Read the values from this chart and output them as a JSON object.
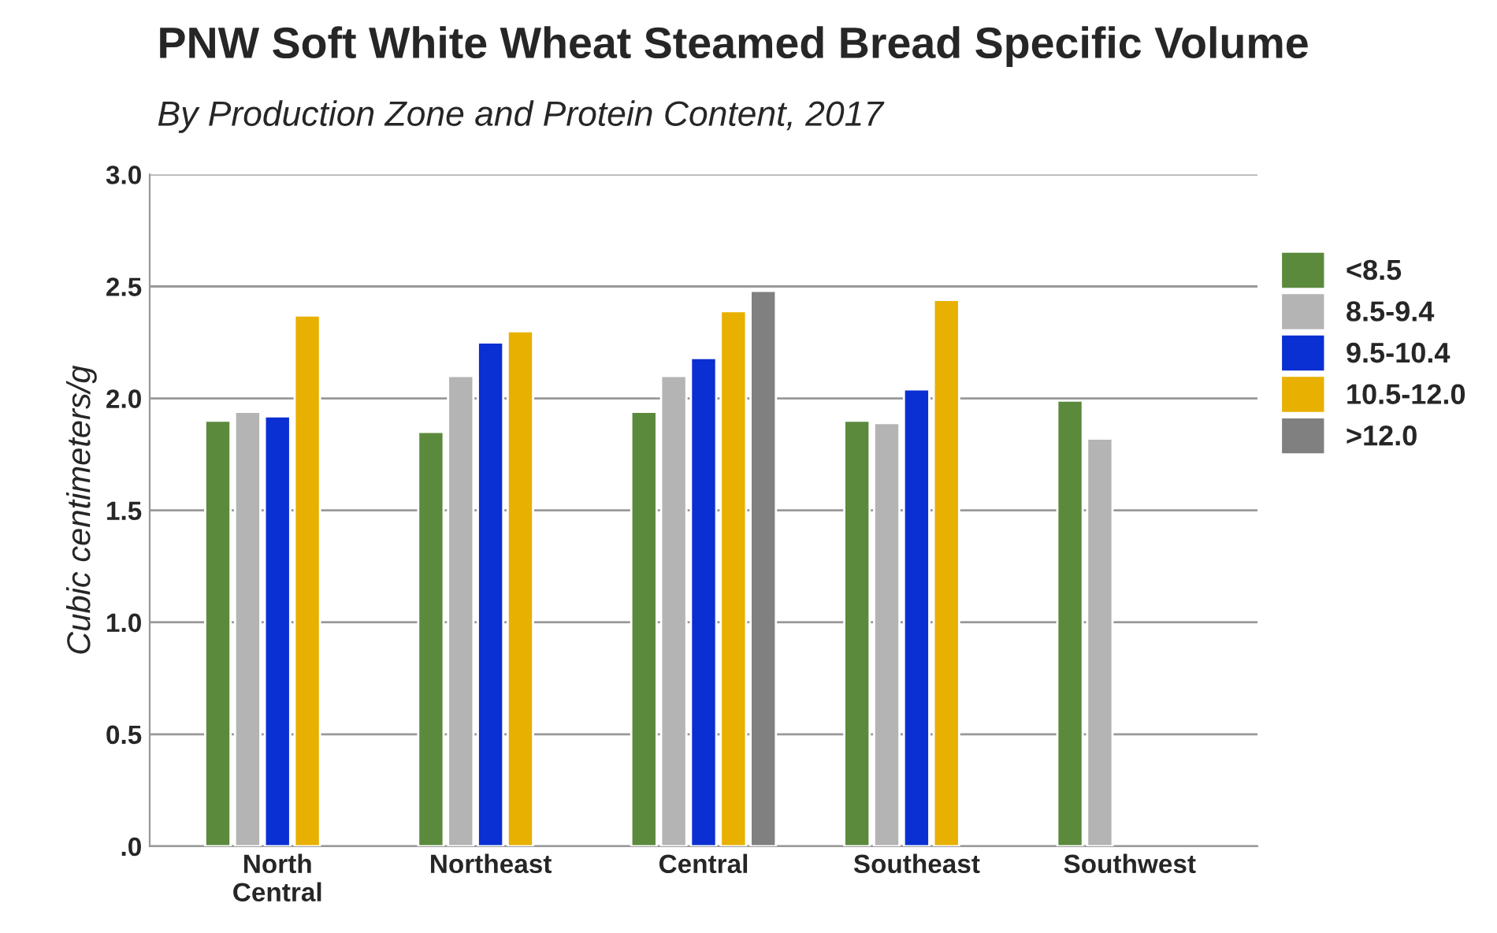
{
  "chart_data": {
    "type": "bar",
    "title": "PNW Soft White Wheat Steamed Bread Specific Volume",
    "subtitle": "By Production Zone and Protein Content, 2017",
    "ylabel": "Cubic centimeters/g",
    "categories": [
      "North\nCentral",
      "Northeast",
      "Central",
      "Southeast",
      "Southwest"
    ],
    "series": [
      {
        "name": "<8.5",
        "color": "#5b8a3c",
        "values": [
          1.9,
          1.85,
          1.94,
          1.9,
          1.99
        ]
      },
      {
        "name": "8.5-9.4",
        "color": "#b4b4b4",
        "values": [
          1.94,
          2.1,
          2.1,
          1.89,
          1.82
        ]
      },
      {
        "name": "9.5-10.4",
        "color": "#0a2fd2",
        "values": [
          1.92,
          2.25,
          2.18,
          2.04,
          null
        ]
      },
      {
        "name": "10.5-12.0",
        "color": "#e8b000",
        "values": [
          2.37,
          2.3,
          2.39,
          2.44,
          null
        ]
      },
      {
        "name": ">12.0",
        "color": "#808080",
        "values": [
          null,
          null,
          2.48,
          null,
          null
        ]
      }
    ],
    "ylim": [
      0,
      3.0
    ],
    "yticks": [
      {
        "value": 0,
        "label": ".0"
      },
      {
        "value": 0.5,
        "label": "0.5"
      },
      {
        "value": 1.0,
        "label": "1.0"
      },
      {
        "value": 1.5,
        "label": "1.5"
      },
      {
        "value": 2.0,
        "label": "2.0"
      },
      {
        "value": 2.5,
        "label": "2.5"
      },
      {
        "value": 3.0,
        "label": "3.0"
      }
    ],
    "grid": "y",
    "legend": "top right"
  }
}
